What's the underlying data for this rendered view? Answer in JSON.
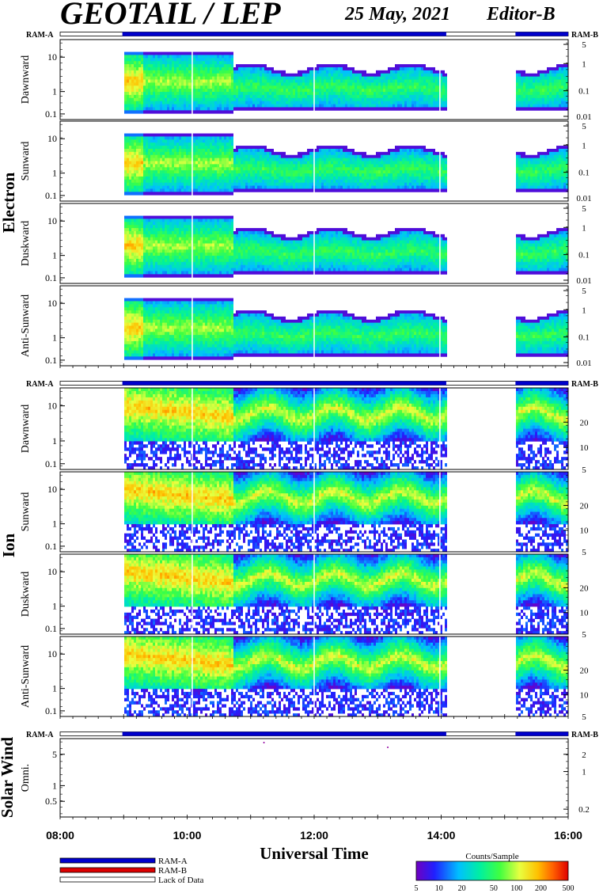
{
  "header": {
    "title": "GEOTAIL / LEP",
    "date": "25 May, 2021",
    "editor": "Editor-B"
  },
  "ram": {
    "a": "RAM-A",
    "b": "RAM-B"
  },
  "legend": {
    "ram_a": "RAM-A",
    "ram_b": "RAM-B",
    "lack": "Lack of Data",
    "colors": {
      "ram_a": "#0000cc",
      "ram_b": "#dd0000",
      "lack": "#ffffff"
    }
  },
  "colorbar": {
    "title": "Counts/Sample",
    "ticks": [
      "5",
      "10",
      "20",
      "50",
      "100",
      "200",
      "500"
    ],
    "colors": [
      "#7000c0",
      "#2020ff",
      "#00c0ff",
      "#00f0a0",
      "#40ff40",
      "#e8ff40",
      "#ffc000",
      "#ff6000",
      "#e00000"
    ]
  },
  "xaxis": {
    "label": "Universal Time",
    "ticks": [
      "08:00",
      "10:00",
      "12:00",
      "14:00",
      "16:00"
    ]
  },
  "group_labels": {
    "electron": "Electron",
    "ion": "Ion",
    "solar_wind": "Solar Wind"
  },
  "chart_data": {
    "type": "heatmap",
    "time_range_hours": [
      8,
      16
    ],
    "data_coverage_hours": [
      [
        8.98,
        14.08
      ],
      [
        15.17,
        16.0
      ]
    ],
    "vertical_gap_lines_hours": [
      10.08,
      12.0,
      13.98
    ],
    "panels": [
      {
        "group": "Electron",
        "label": "Dawnward",
        "left_ticks": [
          "10",
          "1",
          "0.1"
        ],
        "right_ticks": [
          "5",
          "1",
          "0.1",
          "0.01"
        ],
        "kind": "electron"
      },
      {
        "group": "Electron",
        "label": "Sunward",
        "left_ticks": [
          "10",
          "1",
          "0.1"
        ],
        "right_ticks": [
          "5",
          "1",
          "0.1",
          "0.01"
        ],
        "kind": "electron"
      },
      {
        "group": "Electron",
        "label": "Duskward",
        "left_ticks": [
          "10",
          "1",
          "0.1"
        ],
        "right_ticks": [
          "5",
          "1",
          "0.1",
          "0.01"
        ],
        "kind": "electron"
      },
      {
        "group": "Electron",
        "label": "Anti-Sunward",
        "left_ticks": [
          "10",
          "1",
          "0.1"
        ],
        "right_ticks": [
          "5",
          "1",
          "0.1",
          "0.01"
        ],
        "kind": "electron"
      },
      {
        "group": "Ion",
        "label": "Dawnward",
        "left_ticks": [
          "10",
          "1",
          "0.1"
        ],
        "right_ticks": [
          "20",
          "10",
          "5"
        ],
        "kind": "ion"
      },
      {
        "group": "Ion",
        "label": "Sunward",
        "left_ticks": [
          "10",
          "1",
          "0.1"
        ],
        "right_ticks": [
          "20",
          "10",
          "5"
        ],
        "kind": "ion"
      },
      {
        "group": "Ion",
        "label": "Duskward",
        "left_ticks": [
          "10",
          "1",
          "0.1"
        ],
        "right_ticks": [
          "20",
          "10",
          "5"
        ],
        "kind": "ion"
      },
      {
        "group": "Ion",
        "label": "Anti-Sunward",
        "left_ticks": [
          "10",
          "1",
          "0.1"
        ],
        "right_ticks": [
          "20",
          "10",
          "5"
        ],
        "kind": "ion"
      },
      {
        "group": "Solar Wind",
        "label": "Omni.",
        "left_ticks": [
          "5",
          "1",
          "0.5"
        ],
        "right_ticks": [
          "2",
          "1",
          "0.2"
        ],
        "kind": "solar"
      }
    ]
  }
}
